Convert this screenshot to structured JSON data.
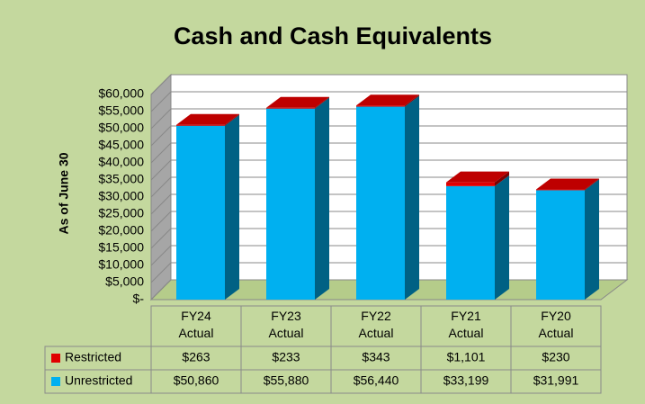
{
  "chart_data": {
    "type": "bar3d_stacked",
    "title": "Cash and Cash Equivalents",
    "y_label": "As of June 30",
    "categories": [
      "FY24 Actual",
      "FY23 Actual",
      "FY22 Actual",
      "FY21 Actual",
      "FY20 Actual"
    ],
    "series": [
      {
        "name": "Restricted",
        "color": "#e00000",
        "values": [
          263,
          233,
          343,
          1101,
          230
        ],
        "value_labels": [
          "$263",
          "$233",
          "$343",
          "$1,101",
          "$230"
        ]
      },
      {
        "name": "Unrestricted",
        "color": "#00b0f0",
        "values": [
          50860,
          55880,
          56440,
          33199,
          31991
        ],
        "value_labels": [
          "$50,860",
          "$55,880",
          "$56,440",
          "$33,199",
          "$31,991"
        ]
      }
    ],
    "stack_order": "bottom_last",
    "ylim": [
      0,
      60000
    ],
    "yticks": [
      {
        "value": 0,
        "label": "$-"
      },
      {
        "value": 5000,
        "label": "$5,000"
      },
      {
        "value": 10000,
        "label": "$10,000"
      },
      {
        "value": 15000,
        "label": "$15,000"
      },
      {
        "value": 20000,
        "label": "$20,000"
      },
      {
        "value": 25000,
        "label": "$25,000"
      },
      {
        "value": 30000,
        "label": "$30,000"
      },
      {
        "value": 35000,
        "label": "$35,000"
      },
      {
        "value": 40000,
        "label": "$40,000"
      },
      {
        "value": 45000,
        "label": "$45,000"
      },
      {
        "value": 50000,
        "label": "$50,000"
      },
      {
        "value": 55000,
        "label": "$55,000"
      },
      {
        "value": 60000,
        "label": "$60,000"
      }
    ],
    "grid": true
  }
}
